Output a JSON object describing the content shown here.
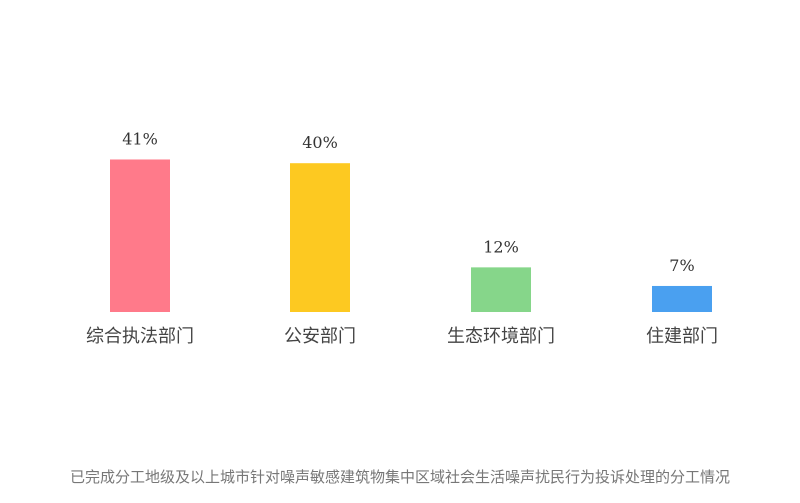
{
  "chart_data": {
    "type": "bar",
    "categories": [
      "综合执法部门",
      "公安部门",
      "生态环境部门",
      "住建部门"
    ],
    "values": [
      41,
      40,
      12,
      7
    ],
    "data_labels": [
      "41%",
      "40%",
      "12%",
      "7%"
    ],
    "colors": [
      "#ff7a8a",
      "#fdc921",
      "#86d68a",
      "#4aa0f0"
    ],
    "unit": "%",
    "ylim": [
      0,
      45
    ],
    "grid": false,
    "axes_visible": false,
    "title": "",
    "xlabel": "",
    "ylabel": ""
  },
  "caption": "已完成分工地级及以上城市针对噪声敏感建筑物集中区域社会生活噪声扰民行为投诉处理的分工情况"
}
